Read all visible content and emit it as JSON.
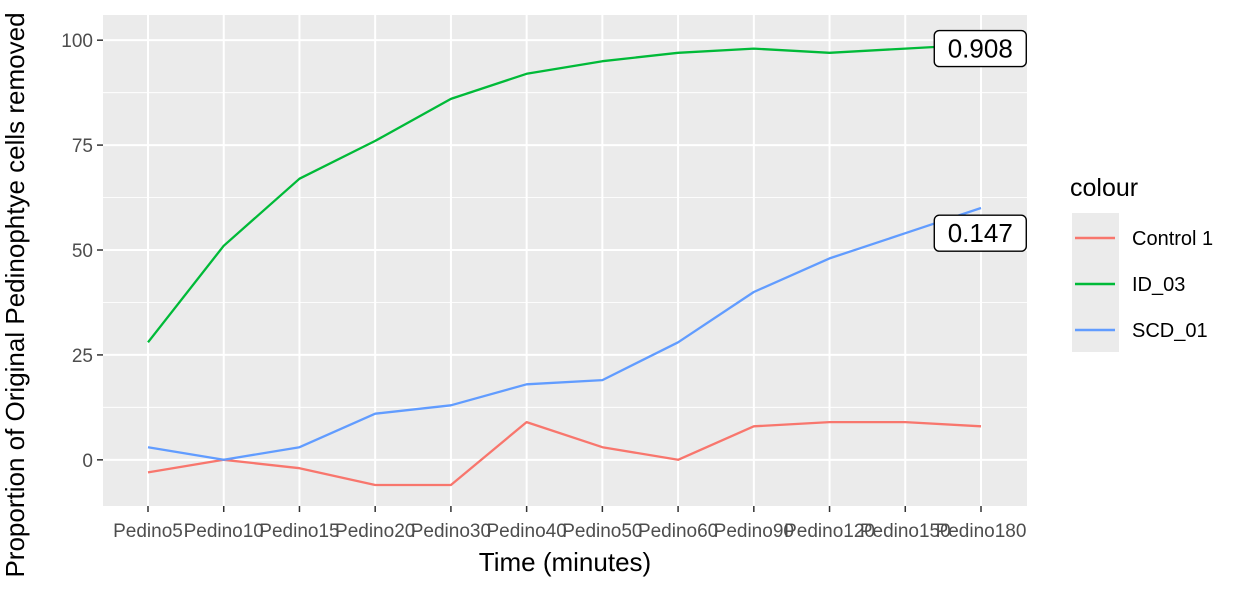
{
  "chart_data": {
    "type": "line",
    "xlabel": "Time (minutes)",
    "ylabel": "Proportion of Original Pedinophtye cells removed",
    "categories": [
      "Pedino5",
      "Pedino10",
      "Pedino15",
      "Pedino20",
      "Pedino30",
      "Pedino40",
      "Pedino50",
      "Pedino60",
      "Pedino90",
      "Pedino120",
      "Pedino150",
      "Pedino180"
    ],
    "y_ticks": [
      "0",
      "25",
      "50",
      "75",
      "100"
    ],
    "ylim": [
      -11,
      106
    ],
    "grid": true,
    "legend": {
      "title": "colour",
      "position": "right"
    },
    "series": [
      {
        "name": "Control 1",
        "color": "#F8766D",
        "values": [
          -3,
          0,
          -2,
          -6,
          -6,
          9,
          3,
          0,
          8,
          9,
          9,
          8
        ]
      },
      {
        "name": "ID_03",
        "color": "#00BA38",
        "values": [
          28,
          51,
          67,
          76,
          86,
          92,
          95,
          97,
          98,
          97,
          98,
          99
        ]
      },
      {
        "name": "SCD_01",
        "color": "#619CFF",
        "values": [
          3,
          0,
          3,
          11,
          13,
          18,
          19,
          28,
          40,
          48,
          54,
          60
        ]
      }
    ],
    "annotations": [
      {
        "label": "0.908",
        "series": "ID_03",
        "x": "Pedino150",
        "y": 98
      },
      {
        "label": "0.147",
        "series": "SCD_01",
        "x": "Pedino150",
        "y": 54
      }
    ]
  }
}
